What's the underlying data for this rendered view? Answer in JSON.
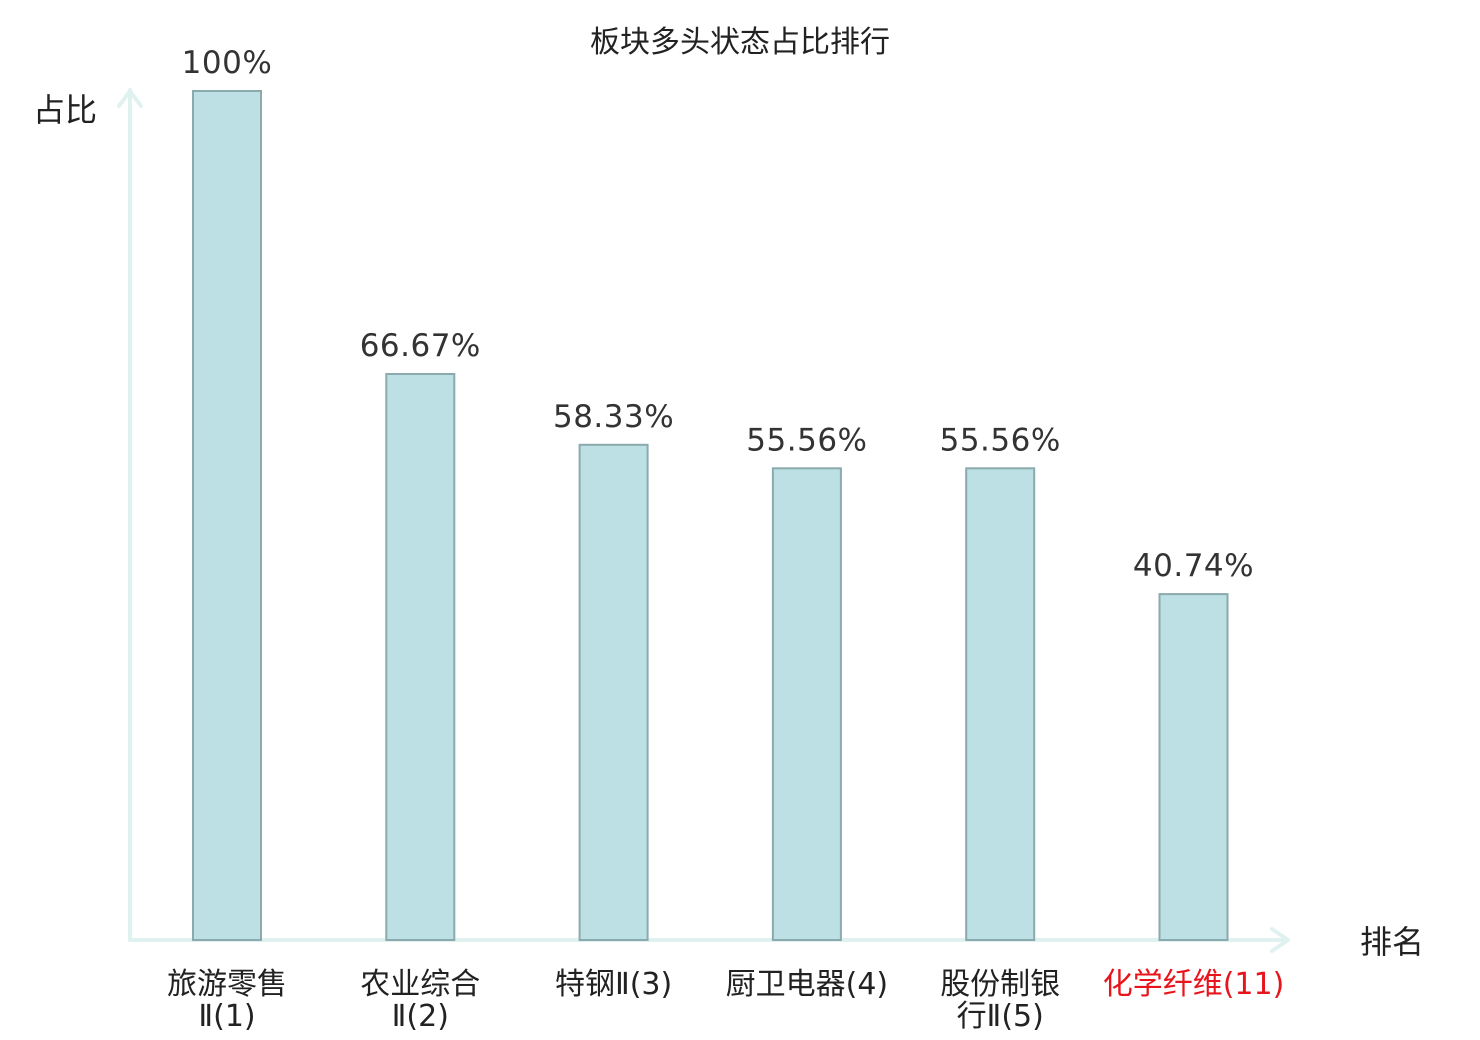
{
  "chart_data": {
    "type": "bar",
    "title": "板块多头状态占比排行",
    "xlabel": "排名",
    "ylabel": "占比",
    "categories": [
      {
        "lines": [
          "旅游零售",
          "Ⅱ(1)"
        ],
        "highlight": false
      },
      {
        "lines": [
          "农业综合",
          "Ⅱ(2)"
        ],
        "highlight": false
      },
      {
        "lines": [
          "特钢Ⅱ(3)"
        ],
        "highlight": false
      },
      {
        "lines": [
          "厨卫电器(4)"
        ],
        "highlight": false
      },
      {
        "lines": [
          "股份制银",
          "行Ⅱ(5)"
        ],
        "highlight": false
      },
      {
        "lines": [
          "化学纤维(11)"
        ],
        "highlight": true
      }
    ],
    "values": [
      100,
      66.67,
      58.33,
      55.56,
      55.56,
      40.74
    ],
    "value_labels": [
      "100%",
      "66.67%",
      "58.33%",
      "55.56%",
      "55.56%",
      "40.74%"
    ],
    "ylim": [
      0,
      100
    ],
    "grid": false,
    "colors": {
      "bar_fill": "#bce0e3",
      "bar_stroke": "#8aaaad",
      "axis": "#dff2ef",
      "text": "#333333",
      "highlight": "#e8141b"
    }
  }
}
